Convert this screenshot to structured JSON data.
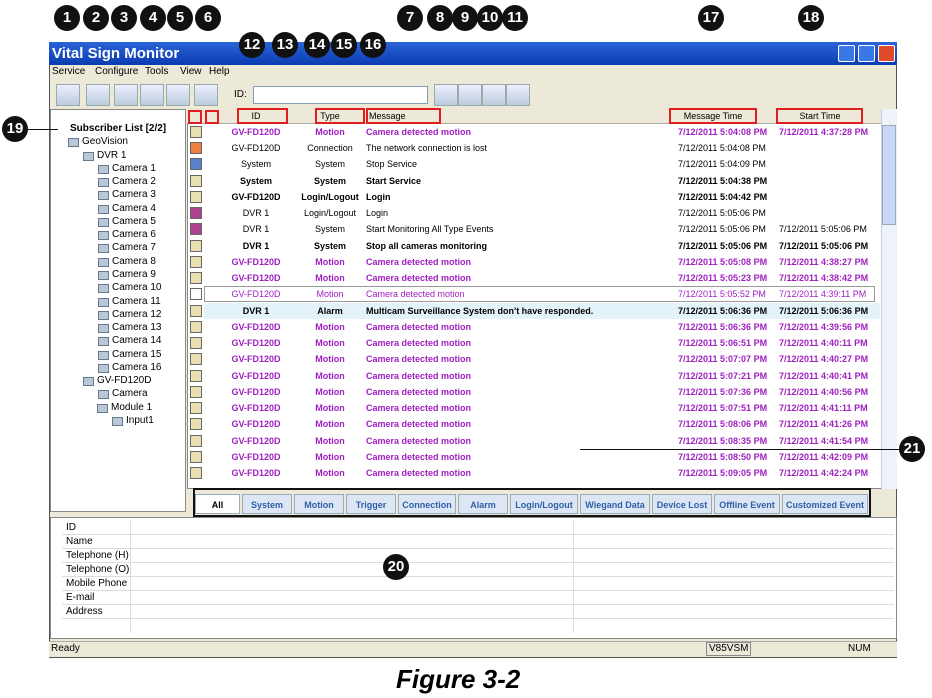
{
  "callouts": [
    1,
    2,
    3,
    4,
    5,
    6,
    7,
    8,
    9,
    10,
    11,
    12,
    13,
    14,
    15,
    16,
    17,
    18,
    19,
    20,
    21
  ],
  "window": {
    "title": "Vital Sign Monitor",
    "menu": [
      "Service",
      "Configure",
      "Tools",
      "View",
      "Help"
    ],
    "id_label": "ID:"
  },
  "tree": {
    "root": "Subscriber List [2/2]",
    "group": "GeoVision",
    "devices": [
      {
        "name": "DVR 1",
        "children": [
          "Camera 1",
          "Camera 2",
          "Camera 3",
          "Camera 4",
          "Camera 5",
          "Camera 6",
          "Camera 7",
          "Camera 8",
          "Camera 9",
          "Camera 10",
          "Camera 11",
          "Camera 12",
          "Camera 13",
          "Camera 14",
          "Camera 15",
          "Camera 16"
        ]
      },
      {
        "name": "GV-FD120D",
        "children": [
          "Camera"
        ],
        "module": {
          "name": "Module 1",
          "children": [
            "Input1"
          ]
        }
      }
    ]
  },
  "list": {
    "columns": [
      "ID",
      "Type",
      "Message",
      "Message Time",
      "Start Time"
    ],
    "rows": [
      {
        "id": "GV-FD120D",
        "type": "Motion",
        "message": "Camera detected motion",
        "message_time": "7/12/2011 5:04:08 PM",
        "start_time": "7/12/2011 4:37:28 PM",
        "color": "#a020c0",
        "bold": true,
        "icon": "#e8e0b0"
      },
      {
        "id": "GV-FD120D",
        "type": "Connection",
        "message": "The network connection is lost",
        "message_time": "7/12/2011 5:04:08 PM",
        "start_time": null,
        "color": "#000000",
        "bold": false,
        "icon": "#f08040"
      },
      {
        "id": "System",
        "type": "System",
        "message": "Stop Service",
        "message_time": "7/12/2011 5:04:09 PM",
        "start_time": null,
        "color": "#000000",
        "bold": false,
        "icon": "#5a80c8"
      },
      {
        "id": "System",
        "type": "System",
        "message": "Start Service",
        "message_time": "7/12/2011 5:04:38 PM",
        "start_time": null,
        "color": "#000000",
        "bold": true,
        "icon": "#e8e0b0"
      },
      {
        "id": "GV-FD120D",
        "type": "Login/Logout",
        "message": "Login",
        "message_time": "7/12/2011 5:04:42 PM",
        "start_time": null,
        "color": "#000000",
        "bold": true,
        "icon": "#e8e0b0"
      },
      {
        "id": "DVR 1",
        "type": "Login/Logout",
        "message": "Login",
        "message_time": "7/12/2011 5:05:06 PM",
        "start_time": null,
        "color": "#000000",
        "bold": false,
        "icon": "#b04090"
      },
      {
        "id": "DVR 1",
        "type": "System",
        "message": "Start Monitoring All Type Events",
        "message_time": "7/12/2011 5:05:06 PM",
        "start_time": "7/12/2011 5:05:06 PM",
        "color": "#000000",
        "bold": false,
        "icon": "#b04090"
      },
      {
        "id": "DVR 1",
        "type": "System",
        "message": "Stop all cameras monitoring",
        "message_time": "7/12/2011 5:05:06 PM",
        "start_time": "7/12/2011 5:05:06 PM",
        "color": "#000000",
        "bold": true,
        "icon": "#e8e0b0"
      },
      {
        "id": "GV-FD120D",
        "type": "Motion",
        "message": "Camera detected motion",
        "message_time": "7/12/2011 5:05:08 PM",
        "start_time": "7/12/2011 4:38:27 PM",
        "color": "#a020c0",
        "bold": true,
        "icon": "#e8e0b0"
      },
      {
        "id": "GV-FD120D",
        "type": "Motion",
        "message": "Camera detected motion",
        "message_time": "7/12/2011 5:05:23 PM",
        "start_time": "7/12/2011 4:38:42 PM",
        "color": "#a020c0",
        "bold": true,
        "icon": "#e8e0b0"
      },
      {
        "id": "GV-FD120D",
        "type": "Motion",
        "message": "Camera detected motion",
        "message_time": "7/12/2011 5:05:52 PM",
        "start_time": "7/12/2011 4:39:11 PM",
        "color": "#a020c0",
        "bold": false,
        "icon": "#ffffff"
      },
      {
        "id": "DVR 1",
        "type": "Alarm",
        "message": "Multicam Surveillance System don't have responded.",
        "message_time": "7/12/2011 5:06:36 PM",
        "start_time": "7/12/2011 5:06:36 PM",
        "color": "#000000",
        "bold": true,
        "icon": "#e8e0b0"
      },
      {
        "id": "GV-FD120D",
        "type": "Motion",
        "message": "Camera detected motion",
        "message_time": "7/12/2011 5:06:36 PM",
        "start_time": "7/12/2011 4:39:56 PM",
        "color": "#a020c0",
        "bold": true,
        "icon": "#e8e0b0"
      },
      {
        "id": "GV-FD120D",
        "type": "Motion",
        "message": "Camera detected motion",
        "message_time": "7/12/2011 5:06:51 PM",
        "start_time": "7/12/2011 4:40:11 PM",
        "color": "#a020c0",
        "bold": true,
        "icon": "#e8e0b0"
      },
      {
        "id": "GV-FD120D",
        "type": "Motion",
        "message": "Camera detected motion",
        "message_time": "7/12/2011 5:07:07 PM",
        "start_time": "7/12/2011 4:40:27 PM",
        "color": "#a020c0",
        "bold": true,
        "icon": "#e8e0b0"
      },
      {
        "id": "GV-FD120D",
        "type": "Motion",
        "message": "Camera detected motion",
        "message_time": "7/12/2011 5:07:21 PM",
        "start_time": "7/12/2011 4:40:41 PM",
        "color": "#a020c0",
        "bold": true,
        "icon": "#e8e0b0"
      },
      {
        "id": "GV-FD120D",
        "type": "Motion",
        "message": "Camera detected motion",
        "message_time": "7/12/2011 5:07:36 PM",
        "start_time": "7/12/2011 4:40:56 PM",
        "color": "#a020c0",
        "bold": true,
        "icon": "#e8e0b0"
      },
      {
        "id": "GV-FD120D",
        "type": "Motion",
        "message": "Camera detected motion",
        "message_time": "7/12/2011 5:07:51 PM",
        "start_time": "7/12/2011 4:41:11 PM",
        "color": "#a020c0",
        "bold": true,
        "icon": "#e8e0b0"
      },
      {
        "id": "GV-FD120D",
        "type": "Motion",
        "message": "Camera detected motion",
        "message_time": "7/12/2011 5:08:06 PM",
        "start_time": "7/12/2011 4:41:26 PM",
        "color": "#a020c0",
        "bold": true,
        "icon": "#e8e0b0"
      },
      {
        "id": "GV-FD120D",
        "type": "Motion",
        "message": "Camera detected motion",
        "message_time": "7/12/2011 5:08:35 PM",
        "start_time": "7/12/2011 4:41:54 PM",
        "color": "#a020c0",
        "bold": true,
        "icon": "#e8e0b0"
      },
      {
        "id": "GV-FD120D",
        "type": "Motion",
        "message": "Camera detected motion",
        "message_time": "7/12/2011 5:08:50 PM",
        "start_time": "7/12/2011 4:42:09 PM",
        "color": "#a020c0",
        "bold": true,
        "icon": "#e8e0b0"
      },
      {
        "id": "GV-FD120D",
        "type": "Motion",
        "message": "Camera detected motion",
        "message_time": "7/12/2011 5:09:05 PM",
        "start_time": "7/12/2011 4:42:24 PM",
        "color": "#a020c0",
        "bold": true,
        "icon": "#e8e0b0"
      }
    ]
  },
  "tabs": [
    "All",
    "System",
    "Motion",
    "Trigger",
    "Connection",
    "Alarm",
    "Login/Logout",
    "Wiegand Data",
    "Device Lost",
    "Offline Event",
    "Customized Event"
  ],
  "details": {
    "fields": [
      "ID",
      "Name",
      "Telephone (H)",
      "Telephone (O)",
      "Mobile Phone",
      "E-mail",
      "Address"
    ]
  },
  "status": {
    "left": "Ready",
    "build": "V85VSM",
    "num": "NUM"
  },
  "caption": "Figure 3-2"
}
